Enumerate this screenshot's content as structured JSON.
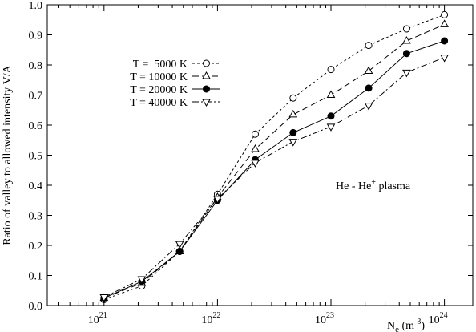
{
  "chart_data": {
    "type": "line",
    "x_scale": "log",
    "xlim": [
      3.162e+20,
      1.778e+24
    ],
    "ylim": [
      0.0,
      1.0
    ],
    "grid": false,
    "legend_position": "top-left",
    "xlabel_main": "N",
    "xlabel_sub": "e",
    "xlabel_unit": "(m",
    "xlabel_unit_exp": "-3",
    "xlabel_unit_close": ")",
    "ylabel": "Ratio of valley to allowed intensity V/A",
    "x": [
      1e+21,
      2.15e+21,
      4.64e+21,
      1e+22,
      2.15e+22,
      4.64e+22,
      1e+23,
      2.15e+23,
      4.64e+23,
      1e+24
    ],
    "x_ticks": [
      {
        "value": 1e+21,
        "base": "10",
        "exp": "21"
      },
      {
        "value": 1e+22,
        "base": "10",
        "exp": "22"
      },
      {
        "value": 1e+23,
        "base": "10",
        "exp": "23"
      },
      {
        "value": 1e+24,
        "base": "10",
        "exp": "24"
      }
    ],
    "y_ticks": [
      "0.0",
      "0.1",
      "0.2",
      "0.3",
      "0.4",
      "0.5",
      "0.6",
      "0.7",
      "0.8",
      "0.9",
      "1.0"
    ],
    "series": [
      {
        "name": "T =  5000 K",
        "marker": "circle-open",
        "dash": "3,3",
        "values": [
          0.02,
          0.065,
          0.18,
          0.37,
          0.57,
          0.69,
          0.785,
          0.865,
          0.92,
          0.967
        ]
      },
      {
        "name": "T = 10000 K",
        "marker": "triangle-up-open",
        "dash": "8,4",
        "values": [
          0.025,
          0.075,
          0.18,
          0.36,
          0.52,
          0.635,
          0.7,
          0.78,
          0.88,
          0.935
        ]
      },
      {
        "name": "T = 20000 K",
        "marker": "circle-filled",
        "dash": "",
        "values": [
          0.025,
          0.08,
          0.18,
          0.35,
          0.485,
          0.575,
          0.63,
          0.723,
          0.838,
          0.88
        ]
      },
      {
        "name": "T = 40000 K",
        "marker": "triangle-down-open",
        "dash": "8,3,2,3",
        "values": [
          0.028,
          0.088,
          0.205,
          0.355,
          0.475,
          0.545,
          0.595,
          0.665,
          0.775,
          0.825
        ]
      }
    ],
    "annotation": {
      "text": "He - He",
      "superscript": "+",
      "suffix": " plasma"
    }
  }
}
